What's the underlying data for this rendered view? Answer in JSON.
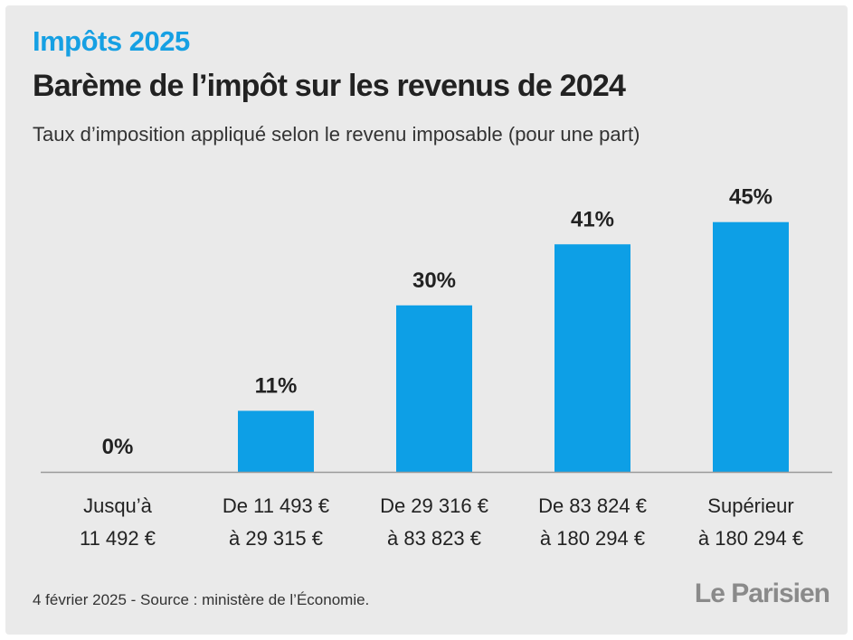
{
  "header": {
    "kicker": "Impôts 2025",
    "title": "Barème de l’impôt sur les revenus de 2024",
    "subtitle": "Taux d’imposition appliqué selon le revenu imposable (pour une part)"
  },
  "chart_data": {
    "type": "bar",
    "categories": [
      [
        "Jusqu’à",
        "11 492 €"
      ],
      [
        "De 11 493 €",
        "à 29 315 €"
      ],
      [
        "De 29 316 €",
        "à 83 823 €"
      ],
      [
        "De 83 824 €",
        "à 180 294  €"
      ],
      [
        "Supérieur",
        "à 180 294 €"
      ]
    ],
    "values": [
      0,
      11,
      30,
      41,
      45
    ],
    "value_labels": [
      "0%",
      "11%",
      "30%",
      "41%",
      "45%"
    ],
    "ylim": [
      0,
      50
    ],
    "bar_color": "#0d9fe6",
    "grid": false
  },
  "footer": {
    "source": "4 février 2025 - Source : ministère de l’Économie.",
    "logo": "Le Parisien"
  }
}
